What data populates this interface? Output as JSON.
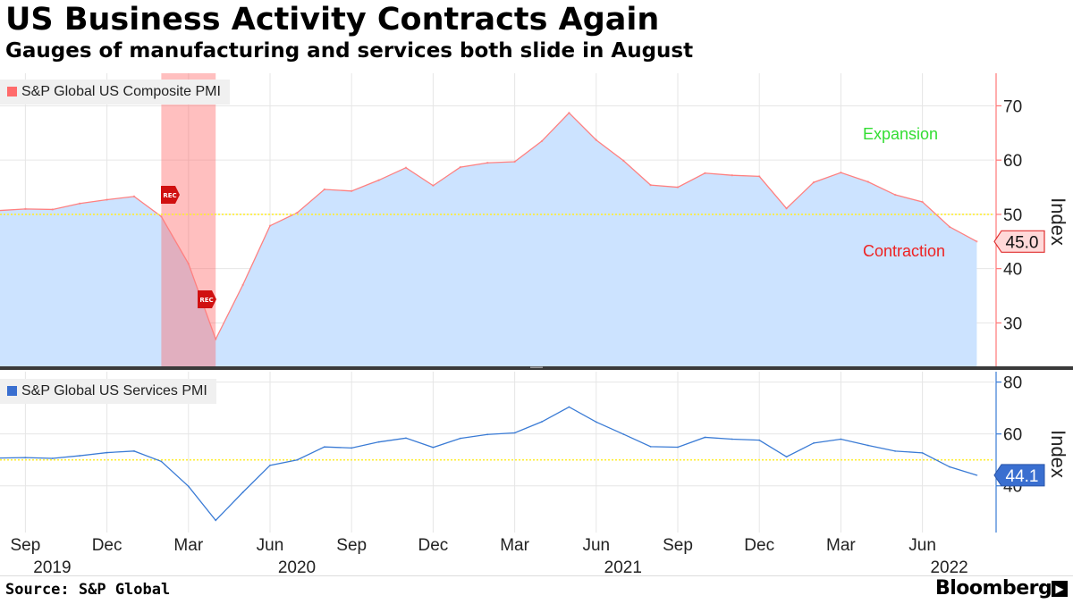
{
  "header": {
    "title": "US Business Activity Contracts Again",
    "subtitle": "Gauges of manufacturing and services both slide in August"
  },
  "footer": {
    "source": "Source: S&P Global",
    "brand": "Bloomberg"
  },
  "colors": {
    "composite_line": "#ff8080",
    "composite_fill": "#cce3ff",
    "services_line": "#3a7bd5",
    "recession_band": "#ff6666",
    "threshold": "#ffee33",
    "expansion_text": "#33dd33",
    "contraction_text": "#ee2222",
    "composite_axis": "#ff7777",
    "services_axis": "#3a7bd5"
  },
  "chart_data": [
    {
      "type": "area",
      "legend": "S&P Global US Composite PMI",
      "ylabel": "Index",
      "ylim": [
        22,
        76
      ],
      "yticks": [
        30,
        40,
        50,
        60,
        70
      ],
      "threshold": 50,
      "region_labels": {
        "above": "Expansion",
        "below": "Contraction"
      },
      "last_value_label": "45.0",
      "recession": {
        "start": "2020-02",
        "end": "2020-04",
        "label": "REC"
      },
      "x": [
        "2019-08",
        "2019-09",
        "2019-10",
        "2019-11",
        "2019-12",
        "2020-01",
        "2020-02",
        "2020-03",
        "2020-04",
        "2020-05",
        "2020-06",
        "2020-07",
        "2020-08",
        "2020-09",
        "2020-10",
        "2020-11",
        "2020-12",
        "2021-01",
        "2021-02",
        "2021-03",
        "2021-04",
        "2021-05",
        "2021-06",
        "2021-07",
        "2021-08",
        "2021-09",
        "2021-10",
        "2021-11",
        "2021-12",
        "2022-01",
        "2022-02",
        "2022-03",
        "2022-04",
        "2022-05",
        "2022-06",
        "2022-07",
        "2022-08"
      ],
      "values": [
        50.7,
        51.0,
        50.9,
        52.0,
        52.7,
        53.3,
        49.6,
        40.9,
        27.0,
        37.0,
        47.9,
        50.3,
        54.6,
        54.3,
        56.3,
        58.6,
        55.3,
        58.7,
        59.5,
        59.7,
        63.5,
        68.7,
        63.7,
        59.9,
        55.4,
        55.0,
        57.6,
        57.2,
        57.0,
        51.1,
        55.9,
        57.7,
        56.0,
        53.6,
        52.3,
        47.7,
        45.0
      ]
    },
    {
      "type": "line",
      "legend": "S&P Global US Services PMI",
      "ylabel": "Index",
      "ylim": [
        22,
        84
      ],
      "yticks": [
        40,
        60,
        80
      ],
      "threshold": 50,
      "last_value_label": "44.1",
      "x": [
        "2019-08",
        "2019-09",
        "2019-10",
        "2019-11",
        "2019-12",
        "2020-01",
        "2020-02",
        "2020-03",
        "2020-04",
        "2020-05",
        "2020-06",
        "2020-07",
        "2020-08",
        "2020-09",
        "2020-10",
        "2020-11",
        "2020-12",
        "2021-01",
        "2021-02",
        "2021-03",
        "2021-04",
        "2021-05",
        "2021-06",
        "2021-07",
        "2021-08",
        "2021-09",
        "2021-10",
        "2021-11",
        "2021-12",
        "2022-01",
        "2022-02",
        "2022-03",
        "2022-04",
        "2022-05",
        "2022-06",
        "2022-07",
        "2022-08"
      ],
      "values": [
        50.7,
        50.9,
        50.6,
        51.6,
        52.8,
        53.4,
        49.4,
        39.8,
        26.7,
        37.5,
        47.9,
        50.0,
        55.0,
        54.6,
        56.9,
        58.4,
        54.8,
        58.3,
        59.8,
        60.4,
        64.7,
        70.4,
        64.6,
        59.9,
        55.1,
        54.9,
        58.7,
        58.0,
        57.6,
        51.2,
        56.5,
        58.0,
        55.6,
        53.4,
        52.7,
        47.3,
        44.1
      ]
    }
  ],
  "x_axis": {
    "tick_labels": [
      {
        "date": "2019-09",
        "month": "Sep",
        "year": "2019"
      },
      {
        "date": "2019-12",
        "month": "Dec",
        "year": ""
      },
      {
        "date": "2020-03",
        "month": "Mar",
        "year": ""
      },
      {
        "date": "2020-06",
        "month": "Jun",
        "year": "2020"
      },
      {
        "date": "2020-09",
        "month": "Sep",
        "year": ""
      },
      {
        "date": "2020-12",
        "month": "Dec",
        "year": ""
      },
      {
        "date": "2021-03",
        "month": "Mar",
        "year": ""
      },
      {
        "date": "2021-06",
        "month": "Jun",
        "year": "2021"
      },
      {
        "date": "2021-09",
        "month": "Sep",
        "year": ""
      },
      {
        "date": "2021-12",
        "month": "Dec",
        "year": ""
      },
      {
        "date": "2022-03",
        "month": "Mar",
        "year": ""
      },
      {
        "date": "2022-06",
        "month": "Jun",
        "year": "2022"
      }
    ]
  }
}
